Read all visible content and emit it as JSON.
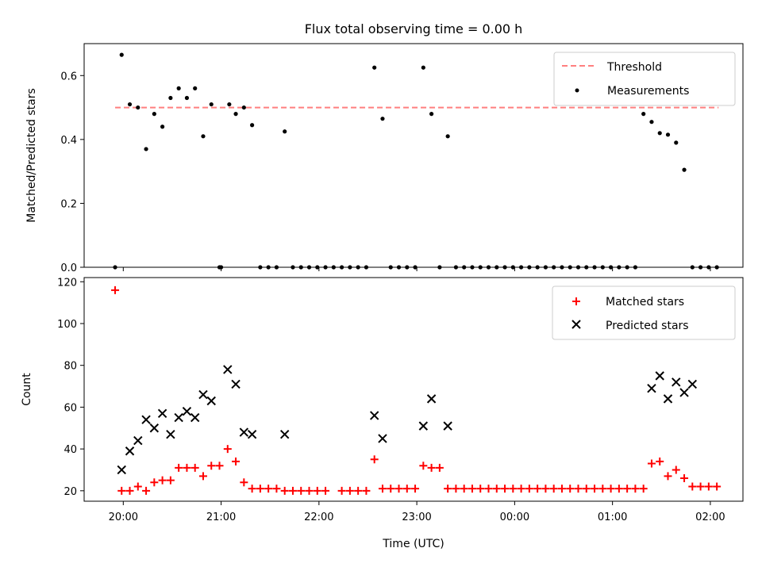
{
  "chart_data": [
    {
      "type": "scatter",
      "title": "Flux total observing time = 0.00 h",
      "xlabel": "",
      "ylabel": "Matched/Predicted stars",
      "xlim": [
        "19:36",
        "02:20"
      ],
      "ylim": [
        0,
        0.7
      ],
      "yticks": [
        0.0,
        0.2,
        0.4,
        0.6
      ],
      "yticklabels": [
        "0.0",
        "0.2",
        "0.4",
        "0.6"
      ],
      "grid": false,
      "legend_position": "top-right",
      "threshold": {
        "name": "Threshold",
        "value": 0.5,
        "x_start": "19:55",
        "x_end": "02:05",
        "color": "#ff7f7f"
      },
      "series": [
        {
          "name": "Measurements",
          "color": "#000000",
          "marker": "dot",
          "x": [
            "19:55",
            "19:59",
            "20:04",
            "20:09",
            "20:14",
            "20:19",
            "20:24",
            "20:29",
            "20:34",
            "20:39",
            "20:44",
            "20:49",
            "20:54",
            "20:59",
            "21:00",
            "21:05",
            "21:09",
            "21:14",
            "21:19",
            "21:24",
            "21:29",
            "21:34",
            "21:39",
            "21:44",
            "21:49",
            "21:54",
            "21:59",
            "22:04",
            "22:09",
            "22:14",
            "22:19",
            "22:24",
            "22:29",
            "22:34",
            "22:39",
            "22:44",
            "22:49",
            "22:54",
            "22:59",
            "23:04",
            "23:09",
            "23:14",
            "23:19",
            "23:24",
            "23:29",
            "23:34",
            "23:39",
            "23:44",
            "23:49",
            "23:54",
            "23:59",
            "00:04",
            "00:09",
            "00:14",
            "00:19",
            "00:24",
            "00:29",
            "00:34",
            "00:39",
            "00:44",
            "00:49",
            "00:54",
            "00:59",
            "01:04",
            "01:09",
            "01:14",
            "01:19",
            "01:24",
            "01:29",
            "01:34",
            "01:39",
            "01:44",
            "01:49",
            "01:54",
            "01:59",
            "02:04"
          ],
          "y": [
            0.0,
            0.665,
            0.51,
            0.5,
            0.37,
            0.48,
            0.44,
            0.53,
            0.56,
            0.53,
            0.56,
            0.41,
            0.51,
            0.0,
            0.0,
            0.51,
            0.48,
            0.5,
            0.445,
            0.0,
            0.0,
            0.0,
            0.425,
            0.0,
            0.0,
            0.0,
            0.0,
            0.0,
            0.0,
            0.0,
            0.0,
            0.0,
            0.0,
            0.625,
            0.465,
            0.0,
            0.0,
            0.0,
            0.0,
            0.625,
            0.48,
            0.0,
            0.41,
            0.0,
            0.0,
            0.0,
            0.0,
            0.0,
            0.0,
            0.0,
            0.0,
            0.0,
            0.0,
            0.0,
            0.0,
            0.0,
            0.0,
            0.0,
            0.0,
            0.0,
            0.0,
            0.0,
            0.0,
            0.0,
            0.0,
            0.0,
            0.48,
            0.455,
            0.42,
            0.415,
            0.39,
            0.305,
            0.0,
            0.0,
            0.0,
            0.0
          ]
        }
      ]
    },
    {
      "type": "scatter",
      "title": "",
      "xlabel": "Time (UTC)",
      "ylabel": "Count",
      "xlim": [
        "19:36",
        "02:20"
      ],
      "ylim": [
        15,
        122
      ],
      "yticks": [
        20,
        40,
        60,
        80,
        100,
        120
      ],
      "yticklabels": [
        "20",
        "40",
        "60",
        "80",
        "100",
        "120"
      ],
      "xticks": [
        "20:00",
        "21:00",
        "22:00",
        "23:00",
        "00:00",
        "01:00",
        "02:00"
      ],
      "grid": false,
      "legend_position": "top-right",
      "series": [
        {
          "name": "Matched stars",
          "color": "#ff0000",
          "marker": "plus",
          "x": [
            "19:55",
            "19:59",
            "20:04",
            "20:09",
            "20:14",
            "20:19",
            "20:24",
            "20:29",
            "20:34",
            "20:39",
            "20:44",
            "20:49",
            "20:54",
            "20:59",
            "21:04",
            "21:09",
            "21:14",
            "21:19",
            "21:24",
            "21:29",
            "21:34",
            "21:39",
            "21:44",
            "21:49",
            "21:54",
            "21:59",
            "22:04",
            "22:14",
            "22:19",
            "22:24",
            "22:29",
            "22:34",
            "22:39",
            "22:44",
            "22:49",
            "22:54",
            "22:59",
            "23:04",
            "23:09",
            "23:14",
            "23:19",
            "23:24",
            "23:29",
            "23:34",
            "23:39",
            "23:44",
            "23:49",
            "23:54",
            "23:59",
            "00:04",
            "00:09",
            "00:14",
            "00:19",
            "00:24",
            "00:29",
            "00:34",
            "00:39",
            "00:44",
            "00:49",
            "00:54",
            "00:59",
            "01:04",
            "01:09",
            "01:14",
            "01:19",
            "01:24",
            "01:29",
            "01:34",
            "01:39",
            "01:44",
            "01:49",
            "01:54",
            "01:59",
            "02:04"
          ],
          "y": [
            116,
            20,
            20,
            22,
            20,
            24,
            25,
            25,
            31,
            31,
            31,
            27,
            32,
            32,
            40,
            34,
            24,
            21,
            21,
            21,
            21,
            20,
            20,
            20,
            20,
            20,
            20,
            20,
            20,
            20,
            20,
            35,
            21,
            21,
            21,
            21,
            21,
            32,
            31,
            31,
            21,
            21,
            21,
            21,
            21,
            21,
            21,
            21,
            21,
            21,
            21,
            21,
            21,
            21,
            21,
            21,
            21,
            21,
            21,
            21,
            21,
            21,
            21,
            21,
            21,
            33,
            34,
            27,
            30,
            26,
            22,
            22,
            22,
            22
          ]
        },
        {
          "name": "Predicted stars",
          "color": "#000000",
          "marker": "x",
          "x": [
            "19:59",
            "20:04",
            "20:09",
            "20:14",
            "20:19",
            "20:24",
            "20:29",
            "20:34",
            "20:39",
            "20:44",
            "20:49",
            "20:54",
            "21:04",
            "21:09",
            "21:14",
            "21:19",
            "21:39",
            "22:34",
            "22:39",
            "23:04",
            "23:09",
            "23:19",
            "01:24",
            "01:29",
            "01:34",
            "01:39",
            "01:44",
            "01:49"
          ],
          "y": [
            30,
            39,
            44,
            54,
            50,
            57,
            47,
            55,
            58,
            55,
            66,
            63,
            78,
            71,
            48,
            47,
            47,
            56,
            45,
            51,
            64,
            51,
            69,
            75,
            64,
            72,
            67,
            71
          ]
        }
      ]
    }
  ]
}
